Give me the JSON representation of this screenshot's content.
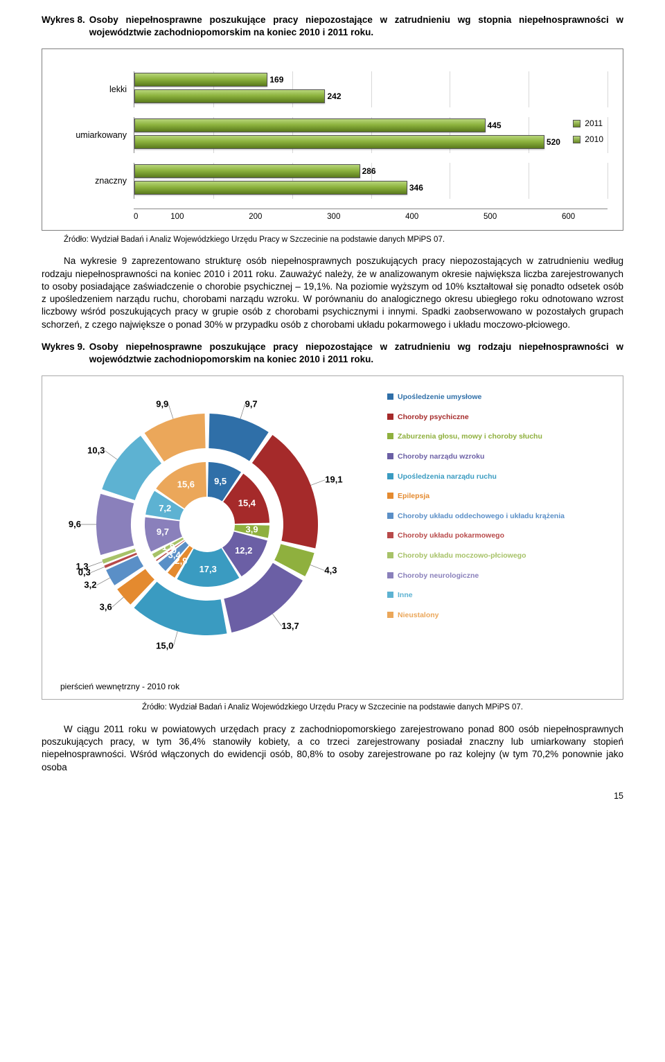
{
  "wykres8": {
    "label": "Wykres 8.",
    "title": "Osoby niepełnosprawne poszukujące pracy niepozostające w zatrudnieniu wg stopnia niepełnosprawności w województwie zachodniopomorskim na koniec 2010 i 2011 roku."
  },
  "barChart": {
    "type": "bar",
    "categories": [
      "lekki",
      "umiarkowany",
      "znaczny"
    ],
    "series": [
      {
        "name": "2011",
        "values": [
          169,
          445,
          286
        ]
      },
      {
        "name": "2010",
        "values": [
          242,
          520,
          346
        ]
      }
    ],
    "xlim_max": 600,
    "xtick_step": 100,
    "xticks": [
      "0",
      "100",
      "200",
      "300",
      "400",
      "500",
      "600"
    ],
    "bar_gradient_top": "#b8d67a",
    "bar_gradient_bottom": "#5a7a1c",
    "grid_color": "#d8d8d8",
    "label_fontsize": 12,
    "legend_labels": [
      "2011",
      "2010"
    ]
  },
  "source8": "Źródło: Wydział Badań i Analiz Wojewódzkiego Urzędu Pracy w Szczecinie na podstawie danych MPiPS 07.",
  "para1": "Na wykresie 9 zaprezentowano strukturę osób niepełnosprawnych poszukujących pracy niepozostających w zatrudnieniu według rodzaju niepełnosprawności na koniec 2010 i 2011 roku. Zauważyć należy, że w analizowanym okresie największa liczba zarejestrowanych to osoby posiadające zaświadczenie o chorobie psychicznej – 19,1%. Na poziomie wyższym od 10% kształtował się ponadto odsetek osób z upośledzeniem narządu ruchu, chorobami narządu wzroku. W porównaniu do analogicznego okresu ubiegłego roku odnotowano wzrost liczbowy wśród poszukujących pracy w grupie osób z chorobami psychicznymi i innymi. Spadki zaobserwowano w pozostałych grupach schorzeń, z czego największe o ponad 30% w przypadku osób z chorobami układu pokarmowego i układu moczowo-płciowego.",
  "wykres9": {
    "label": "Wykres 9.",
    "title": "Osoby niepełnosprawne poszukujące pracy niepozostające w zatrudnieniu wg rodzaju niepełnosprawności w województwie zachodniopomorskim na koniec 2010 i 2011 roku."
  },
  "donut": {
    "type": "pie",
    "legend_items": [
      {
        "label": "Upośledzenie umysłowe",
        "color": "#2f6fa8"
      },
      {
        "label": "Choroby psychiczne",
        "color": "#a52a2a"
      },
      {
        "label": "Zaburzenia głosu, mowy i choroby słuchu",
        "color": "#8fb03e"
      },
      {
        "label": "Choroby narządu wzroku",
        "color": "#6b5fa5"
      },
      {
        "label": "Upośledzenia narządu ruchu",
        "color": "#3a9bc1"
      },
      {
        "label": "Epilepsja",
        "color": "#e48a2f"
      },
      {
        "label": "Choroby układu oddechowego i układu krążenia",
        "color": "#5a8fc7"
      },
      {
        "label": "Choroby układu pokarmowego",
        "color": "#b84a4a"
      },
      {
        "label": "Choroby układu moczowo-płciowego",
        "color": "#a7c268"
      },
      {
        "label": "Choroby neurologiczne",
        "color": "#8a80bb"
      },
      {
        "label": "Inne",
        "color": "#5db2d2"
      },
      {
        "label": "Nieustalony",
        "color": "#eba75a"
      }
    ],
    "inner_ring_year": "2010",
    "outer_ring_year": "2011",
    "inner_values": [
      9.5,
      15.4,
      3.9,
      12.2,
      17.3,
      2.9,
      3.4,
      1.0,
      1.8,
      9.7,
      7.2,
      15.6
    ],
    "outer_values": [
      9.7,
      19.1,
      4.3,
      13.7,
      15.0,
      3.6,
      3.2,
      0.3,
      1.3,
      9.6,
      10.3,
      9.9
    ],
    "inner_labels": [
      "9,5",
      "15,4",
      "3,9",
      "12,2",
      "17,3",
      "2,9",
      "3,4",
      "1,0",
      "1,8",
      "9,7",
      "7,2",
      "15,6"
    ],
    "outer_labels": [
      "9,7",
      "19,1",
      "4,3",
      "13,7",
      "15,0",
      "3,6",
      "3,2",
      "0,3",
      "1,3",
      "9,6",
      "10,3",
      "9,9"
    ],
    "slice_colors": [
      "#2f6fa8",
      "#a52a2a",
      "#8fb03e",
      "#6b5fa5",
      "#3a9bc1",
      "#e48a2f",
      "#5a8fc7",
      "#b84a4a",
      "#a7c268",
      "#8a80bb",
      "#5db2d2",
      "#eba75a"
    ],
    "inner_r_in": 40,
    "inner_r_out": 90,
    "outer_r_in": 110,
    "outer_r_out": 160,
    "gap_color": "#ffffff",
    "start_angle_deg": -90,
    "label_fontsize": 13,
    "caption": "pierścień wewnętrzny - 2010 rok"
  },
  "source9": "Źródło: Wydział Badań i Analiz Wojewódzkiego Urzędu Pracy w Szczecinie na podstawie danych MPiPS 07.",
  "para2": "W ciągu 2011 roku w powiatowych urzędach pracy z zachodniopomorskiego zarejestrowano ponad 800 osób niepełnosprawnych poszukujących pracy, w tym 36,4% stanowiły kobiety, a co trzeci zarejestrowany posiadał znaczny lub umiarkowany stopień niepełnosprawności. Wśród włączonych do ewidencji osób, 80,8% to osoby zarejestrowane po raz kolejny (w tym 70,2% ponownie jako osoba",
  "page": "15"
}
